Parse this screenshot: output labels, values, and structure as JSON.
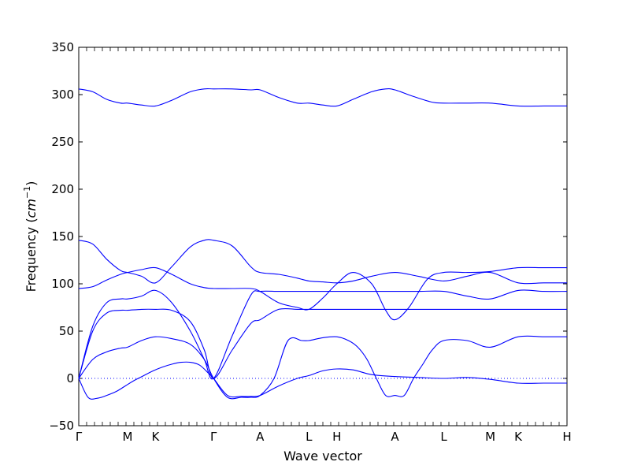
{
  "chart_data": {
    "type": "line",
    "title": "",
    "xlabel": "Wave vector",
    "ylabel": "Frequency ($cm^{-1}$)",
    "ylabel_plain": "Frequency (",
    "ylabel_unit": "cm",
    "ylabel_exp": "−1",
    "ylabel_close": ")",
    "ylim": [
      -50,
      350
    ],
    "yticks": [
      -50,
      0,
      50,
      100,
      150,
      200,
      250,
      300,
      350
    ],
    "ytick_labels": [
      "−50",
      "0",
      "50",
      "100",
      "150",
      "200",
      "250",
      "300",
      "350"
    ],
    "grid": false,
    "legend": "none",
    "zero_line": {
      "y": 0,
      "style": "dotted"
    },
    "line_color": "#0000ff",
    "xlim": [
      0,
      10.5
    ],
    "k_points": [
      {
        "label": "Γ",
        "x": 0
      },
      {
        "label": "M",
        "x": 1.05
      },
      {
        "label": "K",
        "x": 1.65
      },
      {
        "label": "Γ",
        "x": 2.9
      },
      {
        "label": "A",
        "x": 3.9
      },
      {
        "label": "L",
        "x": 4.95
      },
      {
        "label": "H",
        "x": 5.55
      },
      {
        "label": "A",
        "x": 6.8
      },
      {
        "label": "L",
        "x": 7.85
      },
      {
        "label": "M",
        "x": 8.85
      },
      {
        "label": "K",
        "x": 9.45
      },
      {
        "label": "H",
        "x": 10.5
      }
    ],
    "series": [
      {
        "x": [
          0,
          0.3,
          0.6,
          0.9,
          1.05,
          1.35,
          1.65,
          2.0,
          2.4,
          2.7,
          2.9,
          3.3,
          3.7,
          3.9,
          4.3,
          4.7,
          4.95,
          5.25,
          5.55,
          5.9,
          6.3,
          6.6,
          6.8,
          7.2,
          7.6,
          7.85,
          8.35,
          8.85,
          9.45,
          10.0,
          10.5
        ],
        "y": [
          306,
          303,
          295,
          291,
          291,
          289,
          288,
          294,
          303,
          306,
          306,
          306,
          305,
          305,
          297,
          291,
          291,
          289,
          288,
          295,
          303,
          306,
          305,
          298,
          292,
          291,
          291,
          291,
          288,
          288,
          288
        ]
      },
      {
        "x": [
          0,
          0.2,
          0.4,
          0.6,
          0.8,
          1.0,
          1.2,
          1.4,
          1.6,
          1.8,
          2.0,
          2.2,
          2.4,
          2.6,
          2.8,
          2.9,
          3.2,
          3.5,
          3.7,
          3.9,
          4.3,
          4.7,
          4.95,
          5.25,
          5.55,
          5.9,
          6.3,
          6.8,
          7.3,
          7.85,
          8.35,
          8.85,
          9.45,
          10.0,
          10.5
        ],
        "y": [
          0,
          -20,
          -21,
          -18,
          -14,
          -8,
          -2,
          3,
          8,
          12,
          15,
          17,
          17,
          14,
          5,
          0,
          -18,
          -19,
          -19,
          -18,
          -8,
          0,
          3,
          8,
          10,
          9,
          4,
          2,
          1,
          0,
          1,
          -1,
          -5,
          -5,
          -5
        ]
      },
      {
        "x": [
          0,
          0.3,
          0.6,
          0.9,
          1.05,
          1.35,
          1.65,
          2.0,
          2.4,
          2.7,
          2.9,
          3.2,
          3.5,
          3.7,
          3.9,
          4.2,
          4.5,
          4.8,
          4.95,
          5.25,
          5.55,
          5.8,
          6.0,
          6.2,
          6.4,
          6.6,
          6.8,
          7.0,
          7.2,
          7.4,
          7.6,
          7.85,
          8.35,
          8.85,
          9.45,
          10.0,
          10.5
        ],
        "y": [
          0,
          20,
          28,
          32,
          33,
          40,
          44,
          42,
          36,
          20,
          0,
          -20,
          -20,
          -20,
          -18,
          0,
          40,
          40,
          40,
          43,
          44,
          40,
          33,
          20,
          0,
          -18,
          -18,
          -18,
          0,
          15,
          30,
          40,
          40,
          33,
          44,
          44,
          44
        ]
      },
      {
        "x": [
          0,
          0.3,
          0.6,
          0.9,
          1.05,
          1.35,
          1.65,
          2.0,
          2.4,
          2.7,
          2.9,
          3.3,
          3.7,
          3.9,
          4.3,
          4.7,
          4.95,
          5.25,
          5.55,
          5.9,
          6.3,
          6.8,
          7.3,
          7.85,
          8.35,
          8.85,
          9.45,
          10.0,
          10.5
        ],
        "y": [
          0,
          50,
          69,
          72,
          72,
          73,
          73,
          72,
          60,
          30,
          0,
          30,
          58,
          62,
          73,
          73,
          73,
          73,
          73,
          73,
          73,
          73,
          73,
          73,
          73,
          73,
          73,
          73,
          73
        ]
      },
      {
        "x": [
          0,
          0.3,
          0.6,
          0.9,
          1.05,
          1.35,
          1.65,
          2.0,
          2.4,
          2.7,
          2.9,
          3.3,
          3.7,
          3.9,
          4.3,
          4.7,
          4.95,
          5.25,
          5.55,
          5.9,
          6.3,
          6.8,
          7.3,
          7.85,
          8.35,
          8.85,
          9.45,
          10.0,
          10.5
        ],
        "y": [
          0,
          55,
          80,
          84,
          84,
          87,
          93,
          80,
          50,
          20,
          0,
          45,
          88,
          92,
          92,
          92,
          92,
          92,
          92,
          92,
          92,
          92,
          92,
          92,
          87,
          84,
          93,
          92,
          92
        ]
      },
      {
        "x": [
          0,
          0.3,
          0.6,
          0.9,
          1.05,
          1.35,
          1.65,
          2.0,
          2.4,
          2.7,
          2.9,
          3.3,
          3.7,
          3.9,
          4.3,
          4.7,
          4.95,
          5.25,
          5.55,
          5.9,
          6.3,
          6.6,
          6.8,
          7.1,
          7.5,
          7.85,
          8.35,
          8.85,
          9.45,
          10.0,
          10.5
        ],
        "y": [
          95,
          97,
          104,
          110,
          112,
          115,
          117,
          110,
          100,
          96,
          95,
          95,
          95,
          92,
          80,
          75,
          73,
          85,
          100,
          112,
          100,
          72,
          62,
          75,
          105,
          112,
          112,
          113,
          117,
          117,
          117
        ]
      },
      {
        "x": [
          0,
          0.3,
          0.6,
          0.9,
          1.05,
          1.35,
          1.65,
          2.0,
          2.4,
          2.7,
          2.9,
          3.3,
          3.7,
          3.9,
          4.3,
          4.7,
          4.95,
          5.25,
          5.55,
          5.9,
          6.3,
          6.8,
          7.3,
          7.85,
          8.35,
          8.85,
          9.45,
          10.0,
          10.5
        ],
        "y": [
          146,
          142,
          126,
          114,
          112,
          108,
          101,
          118,
          139,
          146,
          146,
          140,
          118,
          112,
          110,
          106,
          103,
          102,
          101,
          103,
          108,
          112,
          108,
          103,
          108,
          112,
          101,
          101,
          101
        ]
      }
    ]
  }
}
